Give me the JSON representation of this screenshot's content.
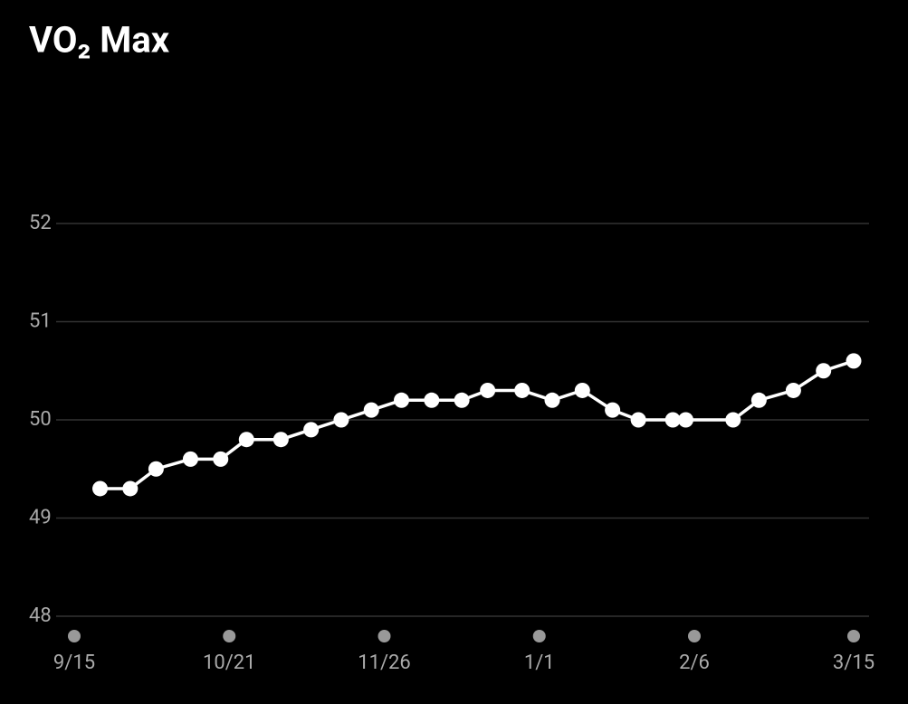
{
  "chart_data": {
    "type": "line",
    "title": "VO₂ Max",
    "x": [
      "9/21",
      "9/28",
      "10/4",
      "10/12",
      "10/19",
      "10/25",
      "11/2",
      "11/9",
      "11/16",
      "11/23",
      "11/30",
      "12/7",
      "12/14",
      "12/20",
      "12/28",
      "1/4",
      "1/11",
      "1/18",
      "1/24",
      "2/1",
      "2/4",
      "2/15",
      "2/21",
      "3/1",
      "3/8",
      "3/15"
    ],
    "values": [
      49.3,
      49.3,
      49.5,
      49.6,
      49.6,
      49.8,
      49.8,
      49.9,
      50,
      50.1,
      50.2,
      50.2,
      50.2,
      50.3,
      50.3,
      50.2,
      50.3,
      50.1,
      50,
      50,
      50,
      50,
      50.2,
      50.3,
      50.5,
      50.6
    ],
    "color": "#ffffff",
    "xlim": [
      "9/15",
      "3/15"
    ],
    "xticks": [
      "9/15",
      "10/21",
      "11/26",
      "1/1",
      "2/6",
      "3/15"
    ],
    "ylim": [
      48,
      52
    ],
    "yticks": [
      48,
      49,
      50,
      51,
      52
    ],
    "grid": true
  }
}
